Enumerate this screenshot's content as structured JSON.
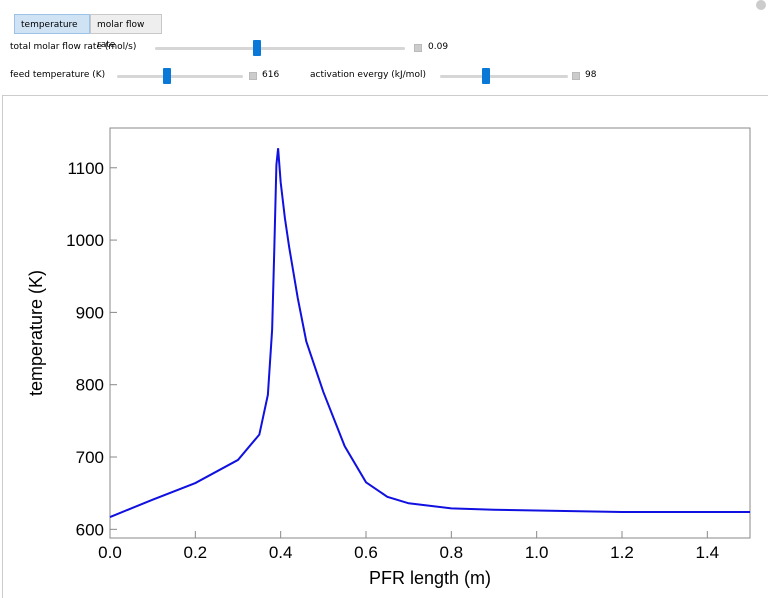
{
  "controls": {
    "tabs": [
      "temperature",
      "molar flow rate"
    ],
    "sliders": [
      {
        "label": "total molar flow rate (mol/s)",
        "value": "0.09"
      },
      {
        "label": "feed temperature (K)",
        "value": "616"
      },
      {
        "label": "activation evergy (kJ/mol)",
        "value": "98"
      }
    ]
  },
  "chart_data": {
    "type": "line",
    "xlabel": "PFR length (m)",
    "ylabel": "temperature (K)",
    "x": [
      0,
      0.1,
      0.2,
      0.3,
      0.35,
      0.37,
      0.38,
      0.385,
      0.39,
      0.394,
      0.4,
      0.41,
      0.42,
      0.44,
      0.46,
      0.5,
      0.55,
      0.6,
      0.65,
      0.7,
      0.8,
      0.9,
      1.0,
      1.2,
      1.5
    ],
    "series": [
      {
        "name": "temperature",
        "color": "#1010e0",
        "values": [
          617,
          641,
          664,
          696,
          731,
          786,
          876,
          986,
          1104,
          1127,
          1080,
          1030,
          990,
          920,
          860,
          790,
          715,
          665,
          645,
          636,
          629,
          627,
          626,
          624,
          624
        ]
      }
    ],
    "xlim": [
      0,
      1.5
    ],
    "ylim": [
      588,
      1155
    ],
    "xticks": [
      {
        "value": 0,
        "label": "0.0"
      },
      0.2,
      0.4,
      0.6,
      0.8,
      {
        "value": 1,
        "label": "1.0"
      },
      1.2,
      1.4
    ],
    "yticks": [
      600,
      700,
      800,
      900,
      1000,
      1100
    ]
  }
}
